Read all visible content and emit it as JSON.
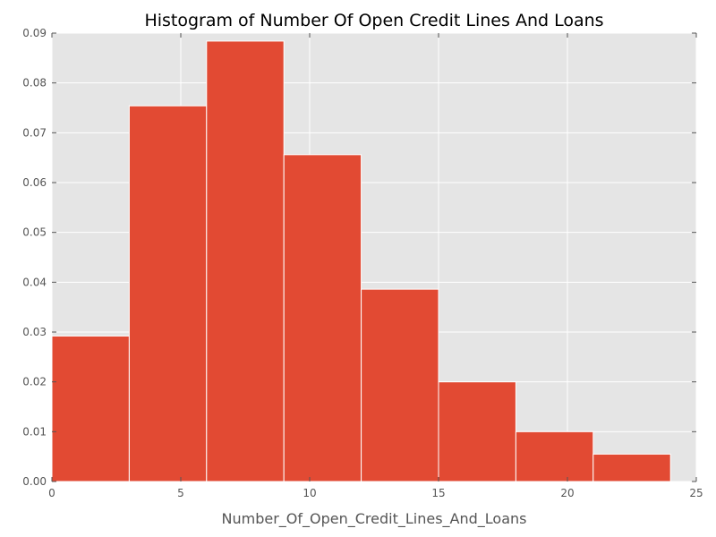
{
  "chart_data": {
    "type": "bar",
    "title": "Histogram of Number Of Open Credit Lines And Loans",
    "xlabel": "Number_Of_Open_Credit_Lines_And_Loans",
    "ylabel": "",
    "xlim": [
      0,
      25
    ],
    "ylim": [
      0,
      0.09
    ],
    "xticks": [
      "0",
      "5",
      "10",
      "15",
      "20",
      "25"
    ],
    "yticks": [
      "0.00",
      "0.01",
      "0.02",
      "0.03",
      "0.04",
      "0.05",
      "0.06",
      "0.07",
      "0.08",
      "0.09"
    ],
    "bins": [
      {
        "start": 0,
        "end": 3,
        "value": 0.0292
      },
      {
        "start": 3,
        "end": 6,
        "value": 0.0754
      },
      {
        "start": 6,
        "end": 9,
        "value": 0.0884
      },
      {
        "start": 9,
        "end": 12,
        "value": 0.0656
      },
      {
        "start": 12,
        "end": 15,
        "value": 0.0386
      },
      {
        "start": 15,
        "end": 18,
        "value": 0.02
      },
      {
        "start": 18,
        "end": 21,
        "value": 0.01
      },
      {
        "start": 21,
        "end": 24,
        "value": 0.0055
      }
    ],
    "grid": true,
    "colors": {
      "bar": "#E24A33",
      "plot_background": "#E5E5E5",
      "grid": "#FFFFFF",
      "bar_edge": "#FFFFFF"
    }
  }
}
